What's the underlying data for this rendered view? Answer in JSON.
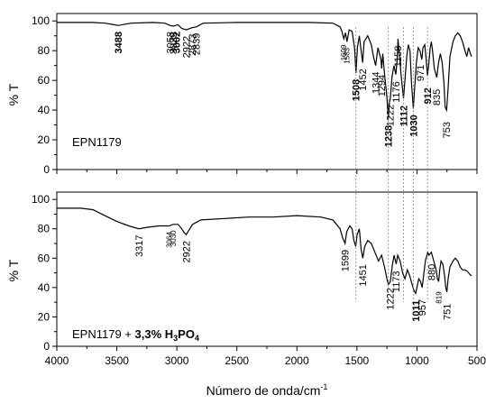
{
  "chart_data": [
    {
      "type": "line",
      "sample_label": "EPN1179",
      "ylabel": "% T",
      "xlim": [
        4000,
        500
      ],
      "ylim": [
        0,
        105
      ],
      "yticks": [
        "0",
        "20",
        "40",
        "60",
        "80",
        "100"
      ],
      "grid": false,
      "series": [
        {
          "name": "",
          "color": "#000000",
          "points": [
            [
              4000,
              99
            ],
            [
              3700,
              99
            ],
            [
              3600,
              98.5
            ],
            [
              3488,
              97
            ],
            [
              3380,
              98.5
            ],
            [
              3200,
              99
            ],
            [
              3100,
              98.5
            ],
            [
              3058,
              97
            ],
            [
              3029,
              96.5
            ],
            [
              2990,
              97.5
            ],
            [
              2960,
              95
            ],
            [
              2922,
              94
            ],
            [
              2873,
              95.5
            ],
            [
              2839,
              96
            ],
            [
              2780,
              98.5
            ],
            [
              2500,
              99
            ],
            [
              2200,
              99
            ],
            [
              1900,
              99
            ],
            [
              1700,
              98.5
            ],
            [
              1640,
              96
            ],
            [
              1625,
              93
            ],
            [
              1609,
              88
            ],
            [
              1595,
              92
            ],
            [
              1583,
              86
            ],
            [
              1565,
              94
            ],
            [
              1540,
              93
            ],
            [
              1520,
              82
            ],
            [
              1508,
              65
            ],
            [
              1496,
              82
            ],
            [
              1480,
              90
            ],
            [
              1465,
              80
            ],
            [
              1452,
              72
            ],
            [
              1440,
              86
            ],
            [
              1410,
              90
            ],
            [
              1380,
              84
            ],
            [
              1362,
              76
            ],
            [
              1344,
              70
            ],
            [
              1325,
              82
            ],
            [
              1300,
              74
            ],
            [
              1294,
              68
            ],
            [
              1285,
              78
            ],
            [
              1270,
              64
            ],
            [
              1252,
              50
            ],
            [
              1238,
              34
            ],
            [
              1230,
              45
            ],
            [
              1222,
              48
            ],
            [
              1208,
              62
            ],
            [
              1192,
              70
            ],
            [
              1176,
              64
            ],
            [
              1165,
              74
            ],
            [
              1158,
              88
            ],
            [
              1150,
              80
            ],
            [
              1130,
              62
            ],
            [
              1112,
              48
            ],
            [
              1100,
              60
            ],
            [
              1085,
              76
            ],
            [
              1072,
              84
            ],
            [
              1058,
              80
            ],
            [
              1045,
              58
            ],
            [
              1030,
              41
            ],
            [
              1018,
              56
            ],
            [
              1005,
              72
            ],
            [
              990,
              82
            ],
            [
              975,
              80
            ],
            [
              960,
              74
            ],
            [
              950,
              82
            ],
            [
              935,
              84
            ],
            [
              925,
              76
            ],
            [
              912,
              63
            ],
            [
              900,
              72
            ],
            [
              890,
              82
            ],
            [
              880,
              86
            ],
            [
              870,
              80
            ],
            [
              855,
              68
            ],
            [
              835,
              62
            ],
            [
              820,
              72
            ],
            [
              805,
              78
            ],
            [
              790,
              72
            ],
            [
              775,
              58
            ],
            [
              765,
              42
            ],
            [
              753,
              40
            ],
            [
              740,
              55
            ],
            [
              725,
              76
            ],
            [
              700,
              86
            ],
            [
              680,
              90
            ],
            [
              660,
              92
            ],
            [
              640,
              90
            ],
            [
              620,
              86
            ],
            [
              600,
              80
            ],
            [
              585,
              76
            ],
            [
              570,
              82
            ],
            [
              555,
              78
            ],
            [
              545,
              76
            ]
          ]
        }
      ],
      "peak_labels": [
        {
          "x": 3488,
          "text": "3488",
          "bold": true
        },
        {
          "x": 3058,
          "text": "3058",
          "bold": false
        },
        {
          "x": 3029,
          "text": "3029",
          "bold": false
        },
        {
          "x": 3002,
          "text": "3002",
          "bold": true
        },
        {
          "x": 2922,
          "text": "2922",
          "bold": false
        },
        {
          "x": 2873,
          "text": "2873",
          "bold": false
        },
        {
          "x": 2839,
          "text": "2839",
          "bold": false
        },
        {
          "x": 1609,
          "text": "1609",
          "bold": false
        },
        {
          "x": 1583,
          "text": "1583",
          "bold": false
        },
        {
          "x": 1508,
          "text": "1508",
          "bold": true
        },
        {
          "x": 1452,
          "text": "1452",
          "bold": false
        },
        {
          "x": 1344,
          "text": "1344",
          "bold": false
        },
        {
          "x": 1294,
          "text": "1294",
          "bold": false
        },
        {
          "x": 1238,
          "text": "1238",
          "bold": true
        },
        {
          "x": 1222,
          "text": "1222",
          "bold": false
        },
        {
          "x": 1176,
          "text": "1176",
          "bold": false
        },
        {
          "x": 1158,
          "text": "1158",
          "bold": false
        },
        {
          "x": 1112,
          "text": "1112",
          "bold": true
        },
        {
          "x": 1030,
          "text": "1030",
          "bold": true
        },
        {
          "x": 971,
          "text": "971",
          "bold": false
        },
        {
          "x": 912,
          "text": "912",
          "bold": true
        },
        {
          "x": 835,
          "text": "835",
          "bold": false
        },
        {
          "x": 753,
          "text": "753",
          "bold": false
        }
      ]
    },
    {
      "type": "line",
      "sample_label_plain": "EPN1179 + ",
      "sample_label_bold_1": "3,3% H",
      "sample_label_sub_1": "3",
      "sample_label_bold_2": "PO",
      "sample_label_sub_2": "4",
      "ylabel": "% T",
      "xlabel": "Número de onda/cm",
      "xlabel_superscript": "-1",
      "xlim": [
        4000,
        500
      ],
      "ylim": [
        0,
        105
      ],
      "yticks": [
        "0",
        "20",
        "40",
        "60",
        "80",
        "100"
      ],
      "xticks": [
        "4000",
        "3500",
        "3000",
        "2500",
        "2000",
        "1500",
        "1000",
        "500"
      ],
      "grid": false,
      "series": [
        {
          "name": "",
          "color": "#000000",
          "points": [
            [
              4000,
              94
            ],
            [
              3800,
              94
            ],
            [
              3700,
              93
            ],
            [
              3600,
              89
            ],
            [
              3500,
              85
            ],
            [
              3400,
              82
            ],
            [
              3317,
              80
            ],
            [
              3250,
              81
            ],
            [
              3150,
              82
            ],
            [
              3064,
              82
            ],
            [
              3030,
              83
            ],
            [
              2990,
              83
            ],
            [
              2960,
              80
            ],
            [
              2935,
              77
            ],
            [
              2922,
              76
            ],
            [
              2900,
              79
            ],
            [
              2870,
              83
            ],
            [
              2800,
              86
            ],
            [
              2600,
              87
            ],
            [
              2400,
              88
            ],
            [
              2200,
              88
            ],
            [
              2000,
              89
            ],
            [
              1800,
              88
            ],
            [
              1700,
              86
            ],
            [
              1640,
              80
            ],
            [
              1620,
              74
            ],
            [
              1599,
              70
            ],
            [
              1585,
              78
            ],
            [
              1560,
              82
            ],
            [
              1540,
              80
            ],
            [
              1525,
              72
            ],
            [
              1510,
              68
            ],
            [
              1498,
              76
            ],
            [
              1480,
              80
            ],
            [
              1465,
              66
            ],
            [
              1451,
              60
            ],
            [
              1435,
              68
            ],
            [
              1410,
              72
            ],
            [
              1380,
              70
            ],
            [
              1350,
              64
            ],
            [
              1320,
              58
            ],
            [
              1295,
              62
            ],
            [
              1270,
              54
            ],
            [
              1250,
              46
            ],
            [
              1238,
              42
            ],
            [
              1222,
              44
            ],
            [
              1205,
              55
            ],
            [
              1190,
              62
            ],
            [
              1173,
              56
            ],
            [
              1160,
              62
            ],
            [
              1140,
              58
            ],
            [
              1120,
              50
            ],
            [
              1100,
              46
            ],
            [
              1080,
              52
            ],
            [
              1060,
              48
            ],
            [
              1040,
              42
            ],
            [
              1025,
              38
            ],
            [
              1011,
              36
            ],
            [
              1000,
              40
            ],
            [
              985,
              46
            ],
            [
              970,
              44
            ],
            [
              957,
              40
            ],
            [
              945,
              48
            ],
            [
              930,
              58
            ],
            [
              910,
              64
            ],
            [
              900,
              62
            ],
            [
              880,
              64
            ],
            [
              860,
              58
            ],
            [
              840,
              52
            ],
            [
              830,
              46
            ],
            [
              819,
              44
            ],
            [
              810,
              52
            ],
            [
              800,
              58
            ],
            [
              785,
              56
            ],
            [
              770,
              48
            ],
            [
              760,
              40
            ],
            [
              751,
              37
            ],
            [
              740,
              46
            ],
            [
              725,
              54
            ],
            [
              700,
              58
            ],
            [
              680,
              60
            ],
            [
              660,
              58
            ],
            [
              640,
              54
            ],
            [
              620,
              52
            ],
            [
              600,
              52
            ],
            [
              580,
              51
            ],
            [
              560,
              49
            ],
            [
              545,
              48
            ]
          ]
        }
      ],
      "peak_labels": [
        {
          "x": 3317,
          "text": "3317",
          "bold": false
        },
        {
          "x": 3064,
          "text": "3064",
          "bold": false
        },
        {
          "x": 3030,
          "text": "3030",
          "bold": false
        },
        {
          "x": 2922,
          "text": "2922",
          "bold": false
        },
        {
          "x": 1599,
          "text": "1599",
          "bold": false
        },
        {
          "x": 1451,
          "text": "1451",
          "bold": false
        },
        {
          "x": 1222,
          "text": "1222",
          "bold": false
        },
        {
          "x": 1173,
          "text": "1173",
          "bold": false
        },
        {
          "x": 1011,
          "text": "1011",
          "bold": true
        },
        {
          "x": 957,
          "text": "957",
          "bold": false
        },
        {
          "x": 880,
          "text": "880",
          "bold": false
        },
        {
          "x": 819,
          "text": "819",
          "bold": false
        },
        {
          "x": 751,
          "text": "751",
          "bold": false
        }
      ]
    }
  ],
  "reference_lines": [
    1508,
    1238,
    1112,
    1030,
    912
  ]
}
